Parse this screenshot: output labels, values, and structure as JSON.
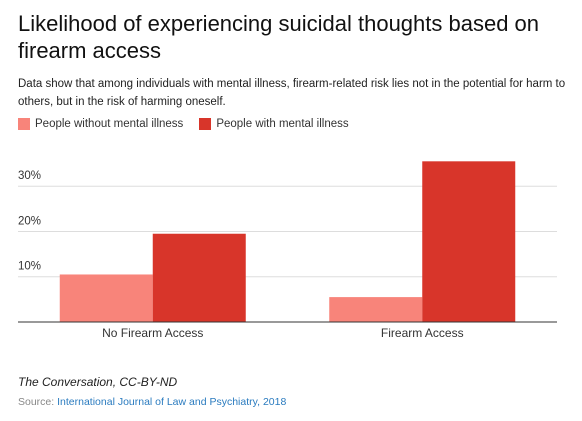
{
  "colors": {
    "without": "#f8847a",
    "with": "#d8352a",
    "grid": "#dddddd",
    "axis": "#333333"
  },
  "credit": "The Conversation, CC-BY-ND",
  "source": {
    "prefix": "Source: ",
    "link_text": "International Journal of Law and Psychiatry, 2018"
  },
  "chart_data": {
    "type": "bar",
    "title": "Likelihood of experiencing suicidal thoughts based on firearm access",
    "subtitle": "Data show that among individuals with mental illness, firearm-related risk lies not in the potential for harm to others, but in the risk of harming oneself.",
    "categories": [
      "No Firearm Access",
      "Firearm Access"
    ],
    "series": [
      {
        "name": "People without mental illness",
        "values": [
          10.5,
          5.5
        ]
      },
      {
        "name": "People with mental illness",
        "values": [
          19.5,
          35.5
        ]
      }
    ],
    "yticks": [
      10,
      20,
      30
    ],
    "ytick_labels": [
      "10%",
      "20%",
      "30%"
    ],
    "ylim": [
      0,
      38
    ],
    "grid": true,
    "legend_position": "top-left"
  }
}
